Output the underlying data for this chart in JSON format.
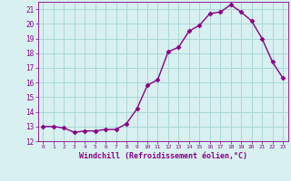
{
  "x": [
    0,
    1,
    2,
    3,
    4,
    5,
    6,
    7,
    8,
    9,
    10,
    11,
    12,
    13,
    14,
    15,
    16,
    17,
    18,
    19,
    20,
    21,
    22,
    23
  ],
  "y": [
    13.0,
    13.0,
    12.9,
    12.6,
    12.7,
    12.7,
    12.8,
    12.8,
    13.2,
    14.2,
    15.8,
    16.2,
    18.1,
    18.4,
    19.5,
    19.9,
    20.7,
    20.8,
    21.3,
    20.8,
    20.2,
    19.0,
    17.4,
    16.3
  ],
  "xlim": [
    -0.5,
    23.5
  ],
  "ylim": [
    12,
    21.5
  ],
  "xticks": [
    0,
    1,
    2,
    3,
    4,
    5,
    6,
    7,
    8,
    9,
    10,
    11,
    12,
    13,
    14,
    15,
    16,
    17,
    18,
    19,
    20,
    21,
    22,
    23
  ],
  "yticks": [
    12,
    13,
    14,
    15,
    16,
    17,
    18,
    19,
    20,
    21
  ],
  "xlabel": "Windchill (Refroidissement éolien,°C)",
  "line_color": "#880088",
  "bg_color": "#d8f0f0",
  "grid_color": "#a8d8d8",
  "tick_color": "#880088",
  "label_color": "#880088",
  "marker": "D",
  "marker_size": 2.5,
  "line_width": 1.0
}
